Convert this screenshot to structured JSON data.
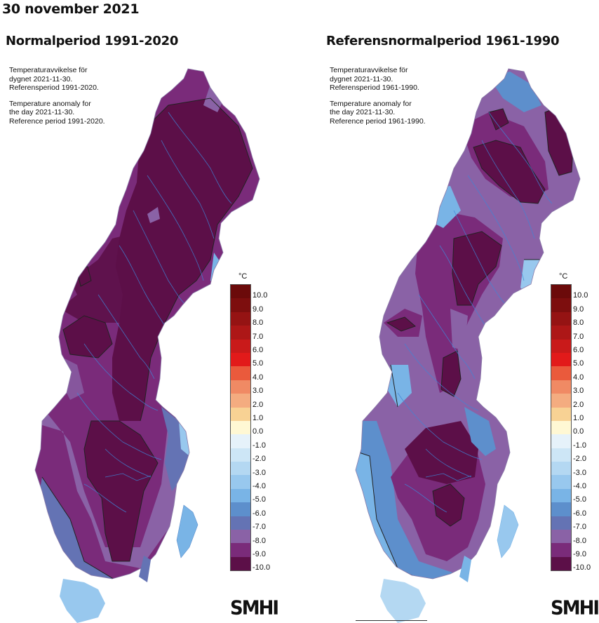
{
  "page_title": "30 november 2021",
  "panels": [
    {
      "title": "Normalperiod 1991-2020",
      "caption_sv": [
        "Temperaturavvikelse för",
        "dygnet 2021-11-30.",
        "Referensperiod 1991-2020."
      ],
      "caption_en": [
        "Temperature anomaly for",
        "the day 2021-11-30.",
        "Reference period 1991-2020."
      ]
    },
    {
      "title": "Referensnormalperiod 1961-1990",
      "caption_sv": [
        "Temperaturavvikelse för",
        "dygnet 2021-11-30.",
        "Referensperiod 1961-1990."
      ],
      "caption_en": [
        "Temperature anomaly for",
        "the day 2021-11-30.",
        "Reference period 1961-1990."
      ]
    }
  ],
  "legend": {
    "unit": "°C",
    "ticks": [
      "10.0",
      "9.0",
      "8.0",
      "7.0",
      "6.0",
      "5.0",
      "4.0",
      "3.0",
      "2.0",
      "1.0",
      "0.0",
      "-1.0",
      "-2.0",
      "-3.0",
      "-4.0",
      "-5.0",
      "-6.0",
      "-7.0",
      "-8.0",
      "-9.0",
      "-10.0"
    ],
    "colors": [
      "#6b0a0a",
      "#7d0e0e",
      "#951313",
      "#ad1717",
      "#c91a1a",
      "#e21a1a",
      "#ea5a3c",
      "#f08a64",
      "#f4ac80",
      "#f8d294",
      "#fff8d4",
      "#e6f2fa",
      "#cde6f6",
      "#b4d8f2",
      "#98c8ee",
      "#79b4e6",
      "#5d8fcc",
      "#6473b4",
      "#8a62a6",
      "#7a2b7a",
      "#5c0f48"
    ]
  },
  "logo": "SMHI"
}
